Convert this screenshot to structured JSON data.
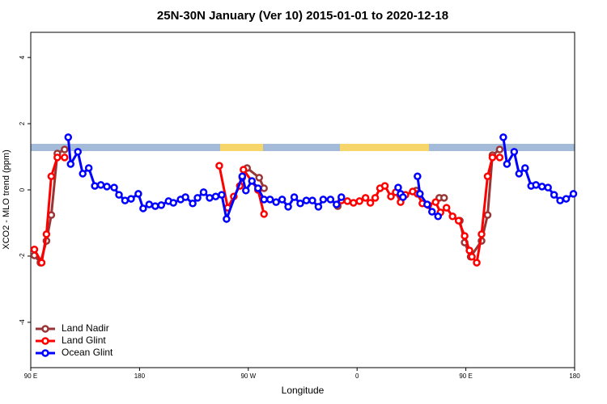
{
  "chart_data": {
    "type": "line",
    "title": "25N-30N January (Ver 10)   2015-01-01 to 2020-12-18",
    "xlabel": "Longitude",
    "ylabel": "XCO2 - MLO trend (ppm)",
    "xlim": [
      90,
      540
    ],
    "ylim": [
      -5.37,
      4.76
    ],
    "xticks": [
      {
        "value": 90,
        "label": "90 E"
      },
      {
        "value": 180,
        "label": "180"
      },
      {
        "value": 270,
        "label": "90 W"
      },
      {
        "value": 360,
        "label": "0"
      },
      {
        "value": 450,
        "label": "90 E"
      },
      {
        "value": 540,
        "label": "180"
      }
    ],
    "yticks": [
      -4,
      -2,
      0,
      2,
      4
    ],
    "legend": "bottom-left",
    "series": [
      {
        "name": "Land Nadir",
        "color": "#9a3535",
        "x": [
          93,
          98,
          103,
          107,
          112,
          118,
          null,
          265,
          269,
          279,
          283,
          null,
          344,
          null,
          409,
          null,
          428,
          432,
          null,
          445,
          449,
          454,
          463,
          468,
          472,
          478
        ],
        "values": [
          -1.98,
          -2.2,
          -1.54,
          -0.76,
          1.1,
          1.22,
          null,
          0.37,
          0.66,
          0.37,
          0.05,
          null,
          -0.49,
          null,
          -0.02,
          null,
          -0.24,
          -0.24,
          null,
          -0.93,
          -1.59,
          -2.02,
          -1.54,
          -0.76,
          1.05,
          1.22
        ]
      },
      {
        "name": "Land Glint",
        "color": "#ff0000",
        "x": [
          93,
          99,
          103,
          107,
          112,
          118,
          null,
          246,
          253,
          258,
          263,
          266,
          278,
          283,
          null,
          347,
          352,
          357,
          362,
          367,
          371,
          375,
          379,
          383,
          388,
          392,
          396,
          400,
          406,
          410,
          414,
          419,
          425,
          429,
          434,
          439,
          444,
          449,
          453,
          455,
          459,
          463,
          468,
          472,
          478
        ],
        "values": [
          -1.8,
          -2.2,
          -1.34,
          0.41,
          0.98,
          0.98,
          null,
          0.73,
          -0.54,
          -0.2,
          0.12,
          0.61,
          0.0,
          -0.73,
          null,
          -0.32,
          -0.34,
          -0.39,
          -0.34,
          -0.24,
          -0.39,
          -0.24,
          0.05,
          0.12,
          -0.2,
          -0.07,
          -0.37,
          -0.15,
          -0.05,
          -0.12,
          -0.41,
          -0.46,
          -0.37,
          -0.68,
          -0.54,
          -0.8,
          -0.93,
          -1.39,
          -1.83,
          -2.02,
          -2.2,
          -1.34,
          0.41,
          0.98,
          0.98
        ]
      },
      {
        "name": "Ocean Glint",
        "color": "#0000ff",
        "x": [
          121,
          123,
          129,
          133,
          138,
          143,
          148,
          153,
          159,
          163,
          168,
          173,
          179,
          183,
          188,
          193,
          198,
          204,
          208,
          214,
          218,
          224,
          228,
          233,
          238,
          243,
          248,
          252,
          265,
          268,
          273,
          278,
          283,
          288,
          293,
          298,
          303,
          308,
          313,
          318,
          323,
          328,
          332,
          338,
          343,
          347,
          null,
          394,
          396,
          398,
          null,
          410,
          412,
          418,
          422,
          427,
          null,
          481,
          484,
          490,
          494,
          499,
          504,
          508,
          513,
          518,
          523,
          528,
          533,
          539
        ],
        "values": [
          1.59,
          0.78,
          1.15,
          0.49,
          0.66,
          0.12,
          0.15,
          0.1,
          0.07,
          -0.15,
          -0.32,
          -0.27,
          -0.12,
          -0.56,
          -0.44,
          -0.49,
          -0.46,
          -0.34,
          -0.39,
          -0.29,
          -0.22,
          -0.41,
          -0.24,
          -0.07,
          -0.24,
          -0.2,
          -0.15,
          -0.88,
          0.41,
          -0.02,
          0.27,
          0.05,
          -0.29,
          -0.29,
          -0.37,
          -0.29,
          -0.51,
          -0.22,
          -0.41,
          -0.32,
          -0.32,
          -0.51,
          -0.29,
          -0.29,
          -0.44,
          -0.22,
          null,
          0.07,
          -0.12,
          -0.22,
          null,
          0.41,
          -0.12,
          -0.44,
          -0.66,
          -0.8,
          null,
          1.59,
          0.78,
          1.15,
          0.49,
          0.66,
          0.12,
          0.15,
          0.1,
          0.07,
          -0.15,
          -0.32,
          -0.27,
          -0.12
        ]
      }
    ]
  }
}
